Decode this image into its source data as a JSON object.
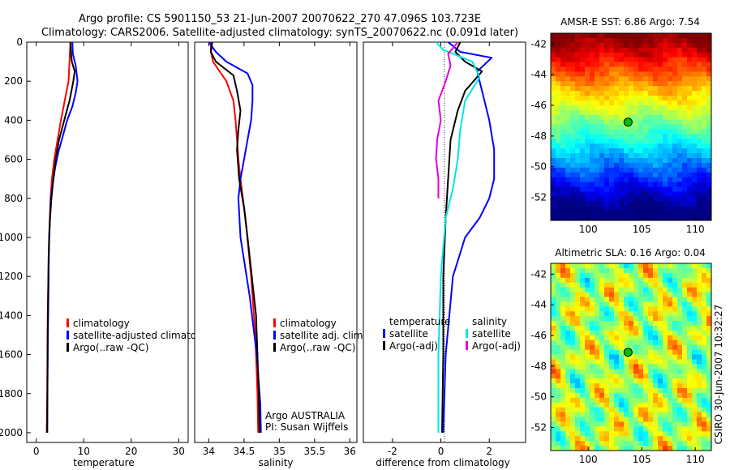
{
  "figure": {
    "title_line1": "Argo profile: CS 5901150_53 21-Jun-2007 20070622_270 47.096S 103.723E",
    "title_line2": "Climatology: CARS2006. Satellite-adjusted climatology: synTS_20070622.nc (0.091d later)",
    "side_stamp": "CSIRO 30-Jun-2007 10:32:27"
  },
  "colors": {
    "climatology": "#ff0000",
    "satellite": "#0000ff",
    "argo": "#000000",
    "sal_satellite": "#00e5e5",
    "sal_argo": "#e000e0"
  },
  "chart_data": [
    {
      "type": "line",
      "xlabel": "temperature",
      "xlim": [
        -2,
        32
      ],
      "ylim": [
        0,
        2050
      ],
      "y_reversed": true,
      "xticks": [
        0,
        10,
        20,
        30
      ],
      "xtick_labels": [
        "0",
        "10",
        "20",
        "30"
      ],
      "yticks": [
        0,
        200,
        400,
        600,
        800,
        1000,
        1200,
        1400,
        1600,
        1800,
        2000
      ],
      "ytick_labels": [
        "0",
        "200",
        "400",
        "600",
        "800",
        "1000",
        "1200",
        "1400",
        "1600",
        "1800",
        "2000"
      ],
      "legend": [
        "climatology",
        "satellite-adjusted climatology",
        "Argo(..raw -QC)"
      ],
      "series": [
        {
          "name": "climatology",
          "color": "#ff0000",
          "x": [
            7.2,
            7.0,
            6.8,
            6.0,
            5.2,
            4.5,
            3.8,
            3.3,
            3.0,
            2.7,
            2.4,
            2.3,
            2.2
          ],
          "y": [
            0,
            100,
            200,
            300,
            400,
            500,
            600,
            700,
            800,
            1000,
            1400,
            1800,
            2000
          ]
        },
        {
          "name": "satellite-adjusted climatology",
          "color": "#0000ff",
          "x": [
            7.6,
            7.7,
            8.3,
            8.7,
            8.3,
            7.6,
            6.5,
            5.6,
            4.7,
            4.0,
            3.5,
            3.1,
            2.7,
            2.4,
            2.3
          ],
          "y": [
            0,
            60,
            120,
            200,
            260,
            330,
            400,
            480,
            560,
            640,
            720,
            800,
            1000,
            1600,
            2000
          ]
        },
        {
          "name": "Argo(..raw -QC)",
          "color": "#000000",
          "x": [
            7.2,
            7.3,
            7.5,
            8.1,
            7.8,
            7.0,
            5.9,
            4.8,
            4.1,
            3.6,
            3.2,
            2.9,
            2.6,
            2.4,
            2.3
          ],
          "y": [
            0,
            50,
            100,
            150,
            200,
            300,
            400,
            500,
            600,
            700,
            800,
            900,
            1100,
            1500,
            2000
          ]
        }
      ]
    },
    {
      "type": "line",
      "xlabel": "salinity",
      "xlim": [
        33.8,
        36.1
      ],
      "ylim": [
        0,
        2050
      ],
      "y_reversed": true,
      "xticks": [
        34,
        34.5,
        35,
        35.5,
        36
      ],
      "xtick_labels": [
        "34",
        "34.5",
        "35",
        "35.5",
        "36"
      ],
      "legend": [
        "climatology",
        "satellite adj. clim.",
        "Argo(..raw -QC)"
      ],
      "annotation": [
        "Argo AUSTRALIA",
        "PI: Susan Wijffels"
      ],
      "series": [
        {
          "name": "climatology",
          "color": "#ff0000",
          "x": [
            34.03,
            34.03,
            34.06,
            34.25,
            34.35,
            34.38,
            34.4,
            34.42,
            34.45,
            34.52,
            34.6,
            34.66,
            34.69,
            34.7
          ],
          "y": [
            0,
            50,
            100,
            200,
            300,
            400,
            500,
            600,
            700,
            900,
            1200,
            1500,
            1800,
            2000
          ]
        },
        {
          "name": "satellite adj. clim.",
          "color": "#0000ff",
          "x": [
            34.0,
            34.1,
            34.25,
            34.55,
            34.62,
            34.62,
            34.6,
            34.55,
            34.5,
            34.45,
            34.42,
            34.45,
            34.58,
            34.68,
            34.73,
            34.74
          ],
          "y": [
            0,
            50,
            100,
            160,
            220,
            300,
            400,
            500,
            600,
            700,
            800,
            1000,
            1300,
            1600,
            1850,
            2000
          ]
        },
        {
          "name": "Argo(..raw -QC)",
          "color": "#000000",
          "x": [
            34.05,
            34.03,
            34.1,
            34.35,
            34.4,
            34.45,
            34.42,
            34.4,
            34.43,
            34.5,
            34.55,
            34.67,
            34.71,
            34.72
          ],
          "y": [
            0,
            50,
            100,
            170,
            250,
            350,
            450,
            550,
            700,
            850,
            1000,
            1400,
            1800,
            2000
          ]
        }
      ]
    },
    {
      "type": "line",
      "xlabel": "difference from climatology",
      "xlim": [
        -3.2,
        3.5
      ],
      "ylim": [
        0,
        2050
      ],
      "y_reversed": true,
      "xticks": [
        -2,
        0,
        2
      ],
      "xtick_labels": [
        "-2",
        "0",
        "2"
      ],
      "legend_temperature": {
        "heading": "temperature",
        "items": [
          "satellite",
          "Argo(-adj)"
        ]
      },
      "legend_salinity": {
        "heading": "salinity",
        "items": [
          "satellite",
          "Argo(-adj)"
        ]
      },
      "series": [
        {
          "name": "satellite",
          "group": "temperature",
          "color": "#0000ff",
          "x": [
            0.3,
            0.8,
            2.1,
            1.5,
            1.7,
            2.0,
            2.2,
            2.2,
            2.0,
            1.6,
            1.0,
            0.5,
            0.2,
            0.1
          ],
          "y": [
            0,
            50,
            80,
            150,
            250,
            400,
            550,
            700,
            800,
            900,
            1000,
            1200,
            1600,
            2000
          ]
        },
        {
          "name": "Argo(-adj)",
          "group": "temperature",
          "color": "#000000",
          "x": [
            0.8,
            0.6,
            1.0,
            1.7,
            1.0,
            0.7,
            0.4,
            0.3,
            0.2,
            0.1,
            0.1,
            0.05
          ],
          "y": [
            0,
            50,
            100,
            150,
            250,
            350,
            500,
            700,
            900,
            1200,
            1600,
            2000
          ]
        },
        {
          "name": "satellite",
          "group": "salinity",
          "color": "#00e5e5",
          "x": [
            -0.2,
            0.1,
            1.3,
            1.6,
            1.0,
            0.8,
            0.7,
            0.5,
            0.2,
            0.0,
            -0.1,
            -0.1
          ],
          "y": [
            0,
            40,
            100,
            180,
            300,
            450,
            600,
            750,
            900,
            1200,
            1600,
            2000
          ]
        },
        {
          "name": "Argo(-adj)",
          "group": "salinity",
          "color": "#e000e0",
          "x": [
            0.7,
            0.3,
            0.4,
            0.2,
            -0.1,
            0.0,
            -0.15,
            -0.2,
            -0.1,
            -0.1
          ],
          "y": [
            0,
            60,
            120,
            200,
            300,
            400,
            500,
            600,
            700,
            800
          ]
        }
      ]
    },
    {
      "type": "heatmap",
      "title": "AMSR-E SST: 6.86 Argo: 7.54",
      "xlim": [
        96.5,
        111.5
      ],
      "ylim": [
        -53.5,
        -41.3
      ],
      "xticks": [
        100,
        105,
        110
      ],
      "xtick_labels": [
        "100",
        "105",
        "110"
      ],
      "yticks": [
        -42,
        -44,
        -46,
        -48,
        -50,
        -52
      ],
      "ytick_labels": [
        "-42",
        "-44",
        "-46",
        "-48",
        "-50",
        "-52"
      ],
      "marker": {
        "lon": 103.723,
        "lat": -47.096
      }
    },
    {
      "type": "heatmap",
      "title": "Altimetric SLA: 0.16 Argo: 0.04",
      "xlim": [
        96.5,
        111.5
      ],
      "ylim": [
        -53.5,
        -41.3
      ],
      "xticks": [
        100,
        105,
        110
      ],
      "xtick_labels": [
        "100",
        "105",
        "110"
      ],
      "yticks": [
        -42,
        -44,
        -46,
        -48,
        -50,
        -52
      ],
      "ytick_labels": [
        "-42",
        "-44",
        "-46",
        "-48",
        "-50",
        "-52"
      ],
      "marker": {
        "lon": 103.723,
        "lat": -47.096
      }
    }
  ]
}
